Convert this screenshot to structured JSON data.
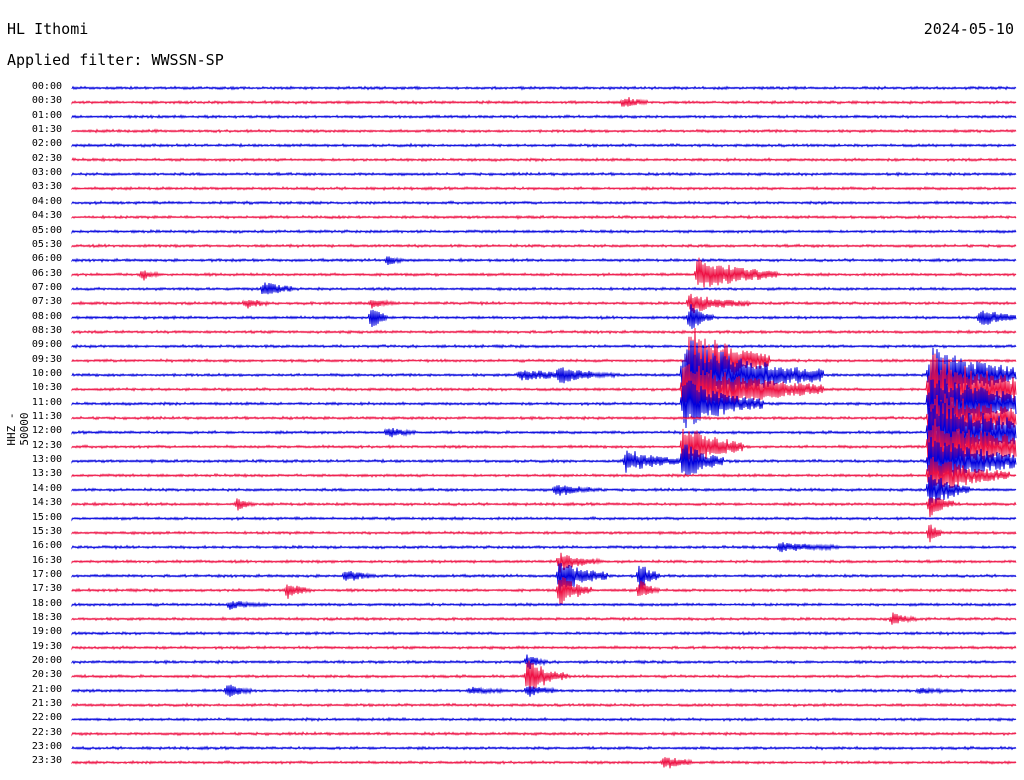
{
  "header": {
    "station": "HL Ithomi",
    "date": "2024-05-10",
    "filter": "Applied filter: WWSSN-SP"
  },
  "channel_label": "HHZ - 50000",
  "colors": {
    "even_row": "#0000dd",
    "odd_row": "#ee1144",
    "background": "#ffffff"
  },
  "time_labels": [
    "00:00",
    "00:30",
    "01:00",
    "01:30",
    "02:00",
    "02:30",
    "03:00",
    "03:30",
    "04:00",
    "04:30",
    "05:00",
    "05:30",
    "06:00",
    "06:30",
    "07:00",
    "07:30",
    "08:00",
    "08:30",
    "09:00",
    "09:30",
    "10:00",
    "10:30",
    "11:00",
    "11:30",
    "12:00",
    "12:30",
    "13:00",
    "13:30",
    "14:00",
    "14:30",
    "15:00",
    "15:30",
    "16:00",
    "16:30",
    "17:00",
    "17:30",
    "18:00",
    "18:30",
    "19:00",
    "19:30",
    "20:00",
    "20:30",
    "21:00",
    "21:30",
    "22:00",
    "22:30",
    "23:00",
    "23:30"
  ]
}
